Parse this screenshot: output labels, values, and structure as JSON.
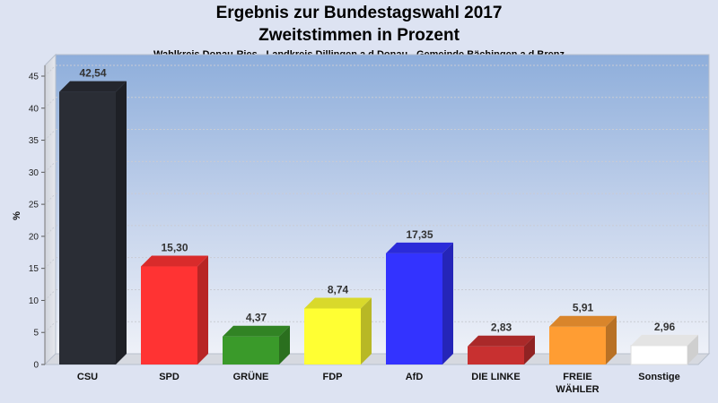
{
  "chart_data": {
    "type": "bar",
    "title": "Ergebnis zur Bundestagswahl 2017",
    "subtitle": "Zweitstimmen in Prozent",
    "caption": "Wahlkreis Donau-Ries - Landkreis Dillingen a.d.Donau - Gemeinde Bächingen a.d.Brenz",
    "ylabel": "%",
    "ylim": [
      0,
      45
    ],
    "yticks": [
      0,
      5,
      10,
      15,
      20,
      25,
      30,
      35,
      40,
      45
    ],
    "grid": true,
    "bars": [
      {
        "category": "CSU",
        "value": 42.54,
        "label": "42,54",
        "color": "#2a2d35"
      },
      {
        "category": "SPD",
        "value": 15.3,
        "label": "15,30",
        "color": "#ff3333"
      },
      {
        "category": "GRÜNE",
        "value": 4.37,
        "label": "4,37",
        "color": "#3a9a2a"
      },
      {
        "category": "FDP",
        "value": 8.74,
        "label": "8,74",
        "color": "#ffff33"
      },
      {
        "category": "AfD",
        "value": 17.35,
        "label": "17,35",
        "color": "#3333ff"
      },
      {
        "category": "DIE LINKE",
        "value": 2.83,
        "label": "2,83",
        "color": "#c83030"
      },
      {
        "category": "FREIE WÄHLER",
        "category_lines": [
          "FREIE",
          "WÄHLER"
        ],
        "value": 5.91,
        "label": "5,91",
        "color": "#ff9d33"
      },
      {
        "category": "Sonstige",
        "value": 2.96,
        "label": "2,96",
        "color": "#ffffff"
      }
    ]
  }
}
